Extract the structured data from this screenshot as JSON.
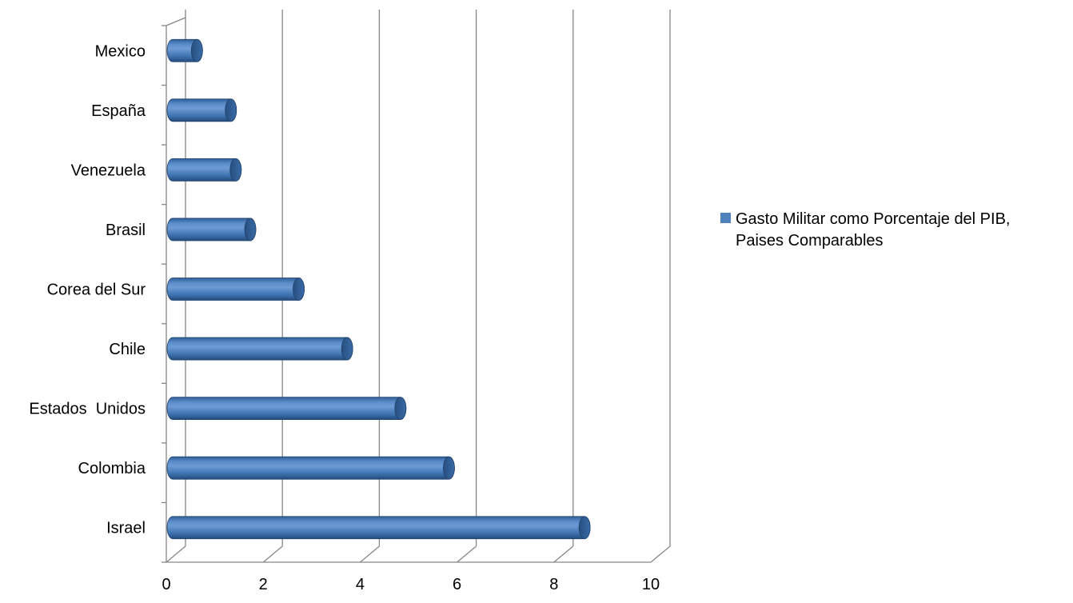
{
  "chart_data": {
    "type": "bar",
    "orientation": "horizontal",
    "categories": [
      "Mexico",
      "España",
      "Venezuela",
      "Brasil",
      "Corea del Sur",
      "Chile",
      "Estados  Unidos",
      "Colombia",
      "Israel"
    ],
    "series": [
      {
        "name": "Gasto Militar como Porcentaje del PIB, Paises Comparables",
        "values": [
          0.5,
          1.2,
          1.3,
          1.6,
          2.6,
          3.6,
          4.7,
          5.7,
          8.5
        ],
        "color": "#4F81BD"
      }
    ],
    "legend": {
      "position": "right",
      "lines": [
        "Gasto Militar como Porcentaje del PIB,",
        "Paises Comparables"
      ]
    },
    "xlim": [
      0,
      10
    ],
    "xticks": [
      "0",
      "2",
      "4",
      "6",
      "8",
      "10"
    ],
    "grid": true,
    "style": "3d-cylinder",
    "colors": {
      "bar": "#4F81BD",
      "bar_dark": "#2E5A8C",
      "grid": "#868686"
    }
  }
}
